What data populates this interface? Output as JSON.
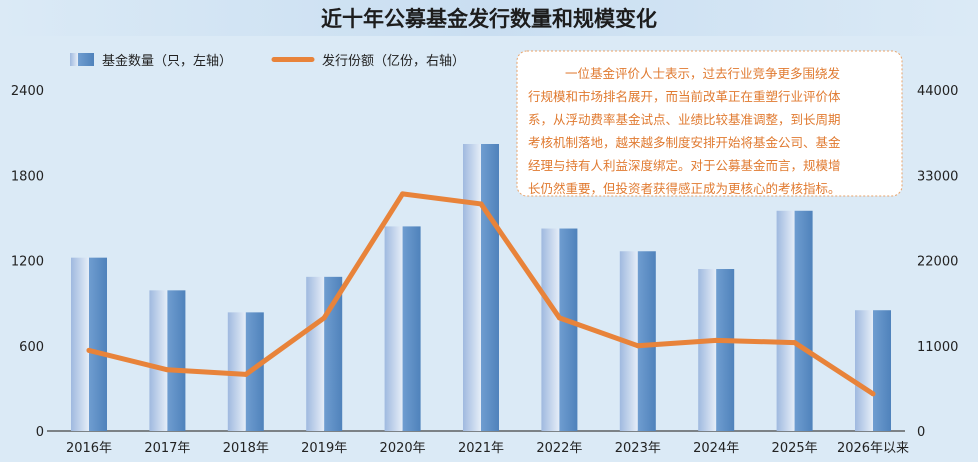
{
  "chart_data": {
    "type": "bar",
    "title": "近十年公募基金发行数量和规模变化",
    "categories": [
      "2016年",
      "2017年",
      "2018年",
      "2019年",
      "2020年",
      "2021年",
      "2022年",
      "2023年",
      "2024年",
      "2025年",
      "2026年以来"
    ],
    "series": [
      {
        "name": "基金数量（只，左轴）",
        "type": "bar",
        "axis": "left",
        "values": [
          1220,
          990,
          835,
          1085,
          1440,
          2020,
          1425,
          1265,
          1140,
          1550,
          850
        ]
      },
      {
        "name": "发行份额（亿份，右轴）",
        "type": "line",
        "axis": "right",
        "values": [
          10400,
          7900,
          7300,
          14600,
          30600,
          29300,
          14600,
          11000,
          11700,
          11400,
          4800
        ]
      }
    ],
    "y_left": {
      "lim": [
        0,
        2400
      ],
      "ticks": [
        "0",
        "600",
        "1200",
        "1800",
        "2400"
      ]
    },
    "y_right": {
      "lim": [
        0,
        44000
      ],
      "ticks": [
        "0",
        "11000",
        "22000",
        "33000",
        "44000"
      ]
    },
    "legend_position": "top-left",
    "grid": false,
    "annotation": "一位基金评价人士表示，过去行业竞争更多围绕发行规模和市场排名展开，而当前改革正在重塑行业评价体系，从浮动费率基金试点、业绩比较基准调整，到长周期考核机制落地，越来越多制度安排开始将基金公司、基金经理与持有人利益深度绑定。对于公募基金而言，规模增长仍然重要，但投资者获得感正成为更核心的考核指标。",
    "annotation_lines": [
      "一位基金评价人士表示，过去行业竞争更多围绕发",
      "行规模和市场排名展开，而当前改革正在重塑行业评价体",
      "系，从浮动费率基金试点、业绩比较基准调整，到长周期",
      "考核机制落地，越来越多制度安排开始将基金公司、基金",
      "经理与持有人利益深度绑定。对于公募基金而言，规模增",
      "长仍然重要，但投资者获得感正成为更核心的考核指标。"
    ]
  },
  "colors": {
    "background": "#dbeaf6",
    "title_band": "#cfe3f3",
    "bar_dark": "#5b8ec4",
    "bar_light": "#b9cde8",
    "line": "#e8833a",
    "note_text": "#e07a30",
    "note_border": "#e8a36a"
  }
}
